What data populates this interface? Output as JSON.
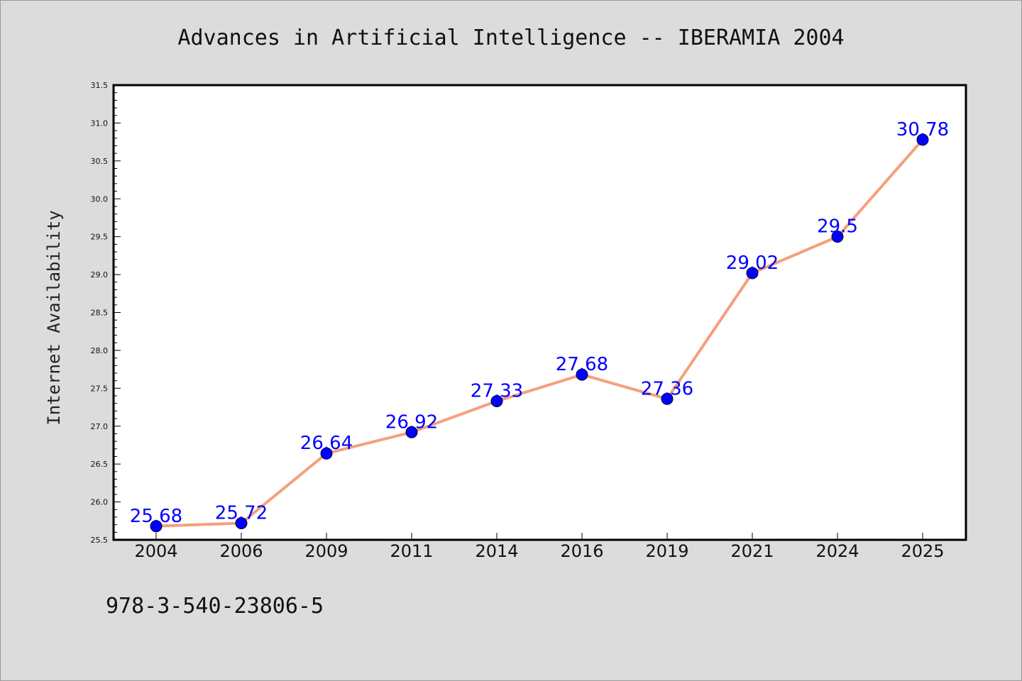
{
  "chart_data": {
    "type": "line",
    "title": "Advances in Artificial Intelligence -- IBERAMIA 2004",
    "xlabel": "",
    "ylabel": "Internet Availability",
    "categories": [
      "2004",
      "2006",
      "2009",
      "2011",
      "2014",
      "2016",
      "2019",
      "2021",
      "2024",
      "2025"
    ],
    "series": [
      {
        "values": [
          25.68,
          25.72,
          26.64,
          26.92,
          27.33,
          27.68,
          27.36,
          29.02,
          29.5,
          30.78
        ]
      }
    ],
    "data_labels": [
      "25.68",
      "25.72",
      "26.64",
      "26.92",
      "27.33",
      "27.68",
      "27.36",
      "29.02",
      "29.5",
      "30.78"
    ],
    "ylim": [
      25.5,
      31.5
    ],
    "yticks": [
      "25.5",
      "26.0",
      "26.5",
      "27.0",
      "27.5",
      "28.0",
      "28.5",
      "29.0",
      "29.5",
      "30.0",
      "30.5",
      "31.0",
      "31.5"
    ],
    "grid": false,
    "colors": {
      "line": "#f4a07c",
      "marker": "#0000ff",
      "data_label": "#0000ff",
      "background": "#dcdcdc",
      "plot_area": "#ffffff"
    }
  },
  "footnote": "978-3-540-23806-5"
}
